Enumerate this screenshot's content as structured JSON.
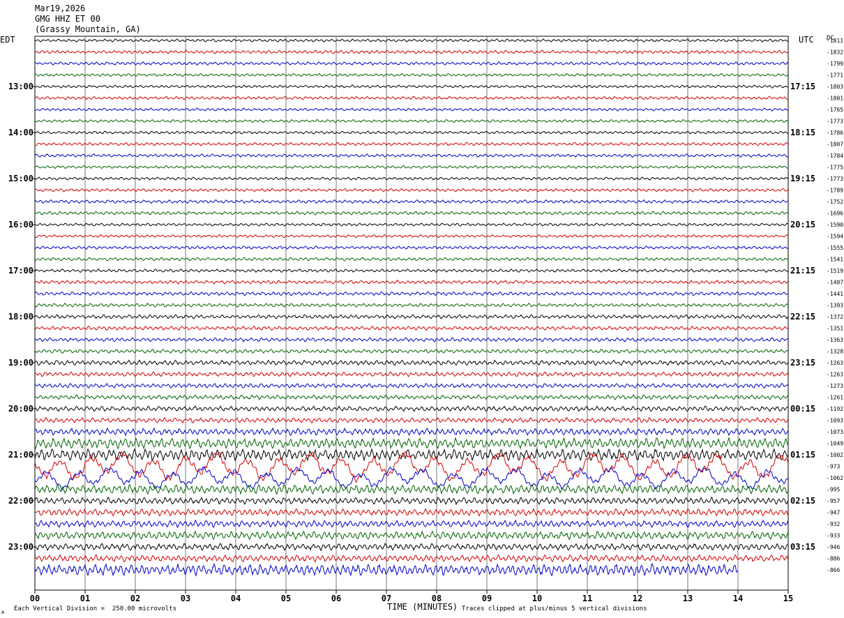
{
  "header": {
    "date": "Mar19,2026",
    "station": "GMG HHZ ET 00",
    "location": "(Grassy Mountain, GA)"
  },
  "labels": {
    "left_tz": "EDT",
    "right_tz": "UTC",
    "dc_header": "DC",
    "xlabel": "TIME (MINUTES)",
    "scale_note": "Each Vertical Division =  250.00 microvolts",
    "clip_note": "Traces clipped at plus/minus 5 vertical divisions",
    "corner_mark": "A"
  },
  "chart_data": {
    "type": "line",
    "title": "GMG HHZ ET 00 (Grassy Mountain, GA)",
    "xlabel": "TIME (MINUTES)",
    "x_ticks": [
      "00",
      "01",
      "02",
      "03",
      "04",
      "05",
      "06",
      "07",
      "08",
      "09",
      "10",
      "11",
      "12",
      "13",
      "14",
      "15"
    ],
    "xlim": [
      0,
      15
    ],
    "grid": true,
    "trace_colors": [
      "#000000",
      "#d40000",
      "#0000c8",
      "#006400"
    ],
    "left_hour_labels": [
      "13:00",
      "14:00",
      "15:00",
      "16:00",
      "17:00",
      "18:00",
      "19:00",
      "20:00",
      "21:00",
      "22:00",
      "23:00"
    ],
    "right_hour_labels": [
      "17:15",
      "18:15",
      "19:15",
      "20:15",
      "21:15",
      "22:15",
      "23:15",
      "00:15",
      "01:15",
      "02:15",
      "03:15"
    ],
    "dc_offsets": [
      "-1811",
      "-1832",
      "-1799",
      "-1771",
      "-1803",
      "-1801",
      "-1765",
      "-1773",
      "-1786",
      "-1807",
      "-1784",
      "-1775",
      "-1773",
      "-1789",
      "-1752",
      "-1696",
      "-1590",
      "-1594",
      "-1555",
      "-1541",
      "-1519",
      "-1487",
      "-1441",
      "-1393",
      "-1372",
      "-1351",
      "-1363",
      "-1328",
      "-1263",
      "-1263",
      "-1273",
      "-1261",
      "-1192",
      "-1093",
      "-1073",
      "-1049",
      "-1002",
      "-973",
      "-1062",
      "-995",
      "-957",
      "-947",
      "-932",
      "-933",
      "-946",
      "-886",
      "-866"
    ],
    "trace_amplitude_divisions": [
      0.25,
      0.3,
      0.28,
      0.25,
      0.25,
      0.28,
      0.25,
      0.25,
      0.25,
      0.28,
      0.28,
      0.25,
      0.25,
      0.28,
      0.3,
      0.3,
      0.25,
      0.25,
      0.28,
      0.28,
      0.28,
      0.32,
      0.32,
      0.32,
      0.35,
      0.35,
      0.35,
      0.35,
      0.45,
      0.4,
      0.4,
      0.4,
      0.45,
      0.45,
      0.6,
      0.9,
      1.0,
      1.8,
      1.4,
      0.8,
      0.6,
      0.6,
      0.6,
      0.7,
      0.6,
      0.6,
      1.0
    ],
    "last_trace_end_minute": 14.0
  }
}
